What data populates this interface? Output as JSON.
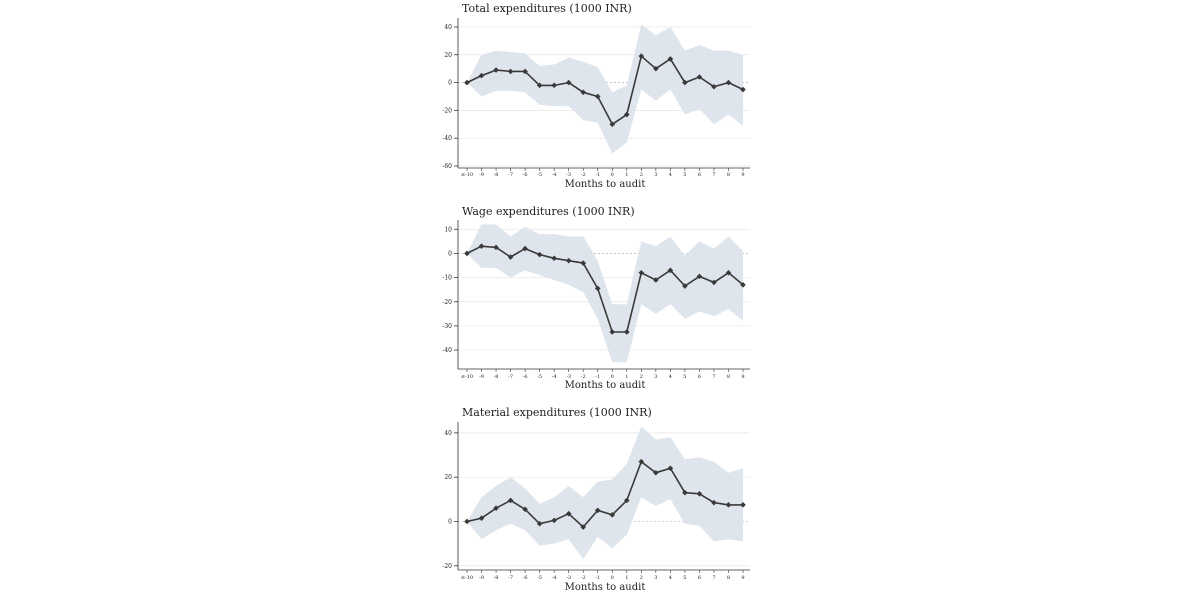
{
  "colors": {
    "line": "#3a3a3a",
    "band": "#dbe2ea",
    "grid": "#e6e6e6",
    "zero_line": "#bdbdbd",
    "axis": "#333333"
  },
  "x_tick_labels": [
    "≤-10",
    "-9",
    "-8",
    "-7",
    "-6",
    "-5",
    "-4",
    "-3",
    "-2",
    "-1",
    "0",
    "1",
    "2",
    "3",
    "4",
    "5",
    "6",
    "7",
    "8",
    "9"
  ],
  "chart_data": [
    {
      "type": "line",
      "title": "Total expenditures (1000 INR)",
      "xlabel": "Months to audit",
      "ylabel": "",
      "ylim": [
        -60,
        45
      ],
      "yticks": [
        40,
        20,
        0,
        -20,
        -40,
        -60
      ],
      "grid": true,
      "series": [
        {
          "values": [
            0,
            5,
            9,
            8,
            8,
            -2,
            -2,
            0,
            -7,
            -10,
            -30,
            -23,
            19,
            10,
            17,
            0,
            4,
            -3,
            0,
            -5
          ],
          "ci_upper": [
            0,
            20,
            23,
            22,
            21,
            12,
            13,
            18,
            15,
            11,
            -7,
            -2,
            42,
            34,
            40,
            23,
            27,
            23,
            23,
            20
          ],
          "ci_lower": [
            0,
            -10,
            -6,
            -6,
            -7,
            -16,
            -17,
            -17,
            -27,
            -29,
            -51,
            -43,
            -5,
            -13,
            -5,
            -23,
            -19,
            -30,
            -23,
            -31
          ]
        }
      ]
    },
    {
      "type": "line",
      "title": "Wage expenditures (1000 INR)",
      "xlabel": "Months to audit",
      "ylabel": "",
      "ylim": [
        -47,
        13
      ],
      "yticks": [
        10,
        0,
        -10,
        -20,
        -30,
        -40
      ],
      "grid": true,
      "series": [
        {
          "values": [
            0,
            3,
            2.5,
            -1.5,
            2,
            -0.5,
            -2,
            -3,
            -4,
            -14.5,
            -32.5,
            -32.5,
            -8,
            -11,
            -7,
            -13.5,
            -9.5,
            -12,
            -8,
            -13
          ],
          "ci_upper": [
            0,
            12,
            12,
            7,
            11,
            8,
            8,
            7,
            7,
            -3,
            -21,
            -21,
            5,
            3,
            7,
            -1,
            5,
            2,
            7,
            1
          ],
          "ci_lower": [
            0,
            -6,
            -6,
            -10,
            -7,
            -9,
            -11,
            -13,
            -16,
            -27,
            -45,
            -45,
            -21,
            -25,
            -21,
            -27,
            -24,
            -26,
            -23,
            -28
          ]
        }
      ]
    },
    {
      "type": "line",
      "title": "Material expenditures (1000 INR)",
      "xlabel": "Months to audit",
      "ylabel": "",
      "ylim": [
        -21,
        44
      ],
      "yticks": [
        40,
        20,
        0,
        -20
      ],
      "grid": true,
      "series": [
        {
          "values": [
            0,
            1.5,
            6,
            9.5,
            5.5,
            -1,
            0.5,
            3.5,
            -2.5,
            5,
            3,
            9.5,
            27,
            22,
            24,
            13,
            12.5,
            8.5,
            7.5,
            7.5
          ],
          "ci_upper": [
            0,
            11,
            16,
            20,
            15,
            8,
            11,
            16,
            11,
            18,
            19,
            26,
            43,
            37,
            38,
            28,
            29,
            27,
            22,
            24
          ],
          "ci_lower": [
            0,
            -8,
            -4,
            -1,
            -4,
            -11,
            -10,
            -8,
            -17,
            -7,
            -12,
            -6,
            11,
            7,
            10,
            -1,
            -2,
            -9,
            -8,
            -9
          ]
        }
      ]
    }
  ]
}
